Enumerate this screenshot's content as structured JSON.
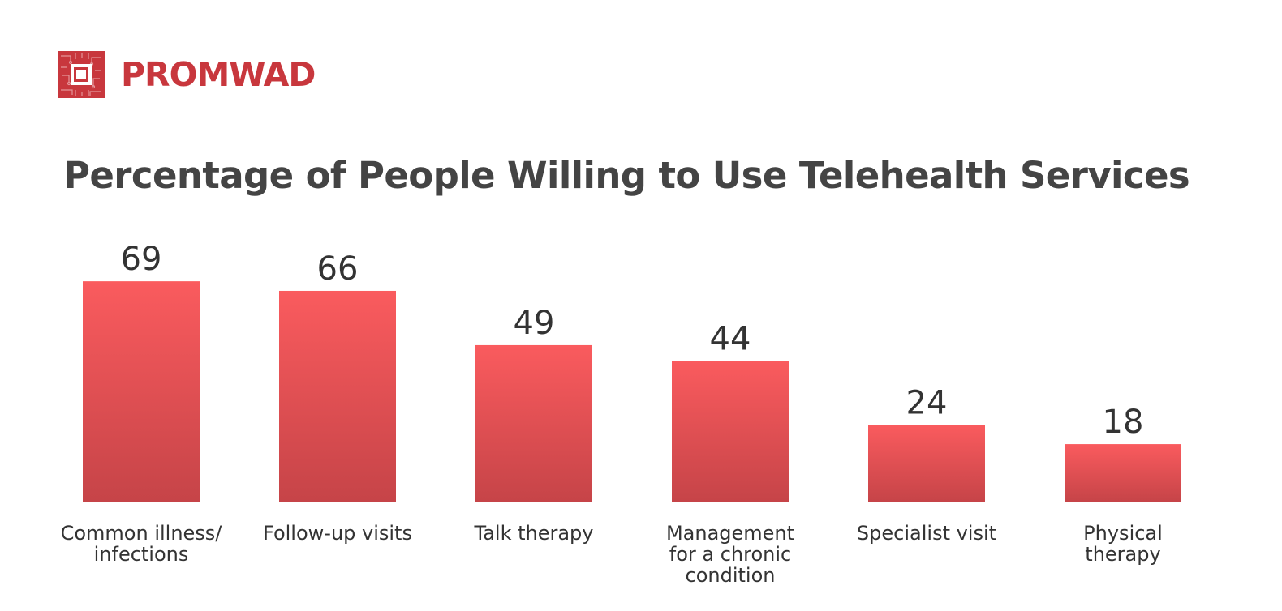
{
  "brand": {
    "name": "PROMWAD",
    "color": "#c8373d",
    "icon": "chip-icon"
  },
  "chart_data": {
    "type": "bar",
    "title": "Percentage of People Willing to Use Telehealth Services",
    "categories": [
      [
        "Common illness/",
        "infections"
      ],
      [
        "Follow-up visits"
      ],
      [
        "Talk therapy"
      ],
      [
        "Management",
        "for a chronic",
        "condition"
      ],
      [
        "Specialist visit"
      ],
      [
        "Physical",
        "therapy"
      ]
    ],
    "values": [
      69,
      66,
      49,
      44,
      24,
      18
    ],
    "data_labels": [
      "69",
      "66",
      "49",
      "44",
      "24",
      "18"
    ],
    "bar_color_top": "#fa5b5e",
    "bar_color_bottom": "#c64448",
    "grid": false,
    "legend": "none"
  }
}
